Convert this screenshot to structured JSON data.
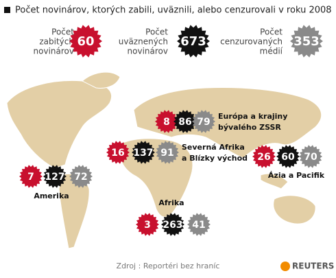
{
  "title": "Počet novinárov, ktorých zabili, uväznili, alebo cenzurovali v roku 2008",
  "totals": [
    {
      "label": [
        "Počet",
        "zabitých",
        "novinárov"
      ],
      "value": "60"
    },
    {
      "label": [
        "Počet",
        "uväznených",
        "novinárov"
      ],
      "value": "673"
    },
    {
      "label": [
        "Počet",
        "cenzurovaných",
        "médií"
      ],
      "value": "353"
    }
  ],
  "regions": [
    {
      "name": [
        "Amerika"
      ],
      "values": [
        "7",
        "127",
        "72"
      ]
    },
    {
      "name": [
        "Severná Afrika",
        "a Blízky východ"
      ],
      "values": [
        "16",
        "137",
        "91"
      ]
    },
    {
      "name": [
        "Európa a krajiny",
        "bývalého ZSSR"
      ],
      "values": [
        "8",
        "86",
        "79"
      ]
    },
    {
      "name": [
        "Ázia a Pacifik"
      ],
      "values": [
        "26",
        "60",
        "70"
      ]
    },
    {
      "name": [
        "Afrika"
      ],
      "values": [
        "3",
        "263",
        "41"
      ]
    }
  ],
  "source": "Zdroj : Reportéri bez hraníc",
  "brand": "REUTERS"
}
